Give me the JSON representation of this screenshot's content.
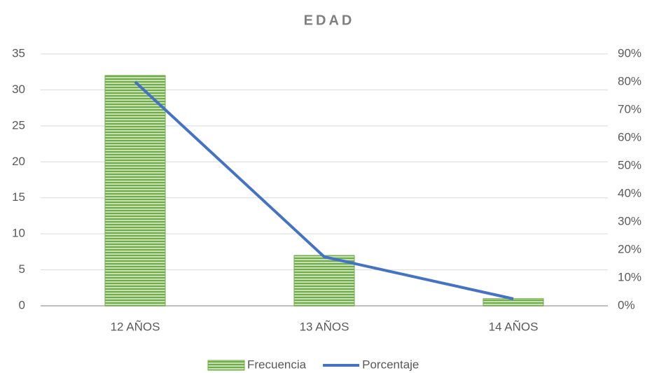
{
  "chart_data": {
    "type": "combo",
    "title": "EDAD",
    "categories": [
      "12 AÑOS",
      "13 AÑOS",
      "14 AÑOS"
    ],
    "series": [
      {
        "name": "Frecuencia",
        "type": "bar",
        "color": "#70ad47",
        "values": [
          32,
          7,
          1
        ]
      },
      {
        "name": "Porcentaje",
        "type": "line",
        "axis": "y2",
        "color": "#4472c4",
        "values": [
          80,
          17.5,
          2.5
        ]
      }
    ],
    "ylim": [
      0,
      35
    ],
    "yticks": [
      0,
      5,
      10,
      15,
      20,
      25,
      30,
      35
    ],
    "y2lim": [
      0,
      90
    ],
    "y2ticks": [
      {
        "value": 0,
        "label": "0%"
      },
      {
        "value": 10,
        "label": "10%"
      },
      {
        "value": 20,
        "label": "20%"
      },
      {
        "value": 30,
        "label": "30%"
      },
      {
        "value": 40,
        "label": "40%"
      },
      {
        "value": 50,
        "label": "50%"
      },
      {
        "value": 60,
        "label": "60%"
      },
      {
        "value": 70,
        "label": "70%"
      },
      {
        "value": 80,
        "label": "80%"
      },
      {
        "value": 90,
        "label": "90%"
      }
    ],
    "grid": true,
    "legend": "bottom"
  }
}
